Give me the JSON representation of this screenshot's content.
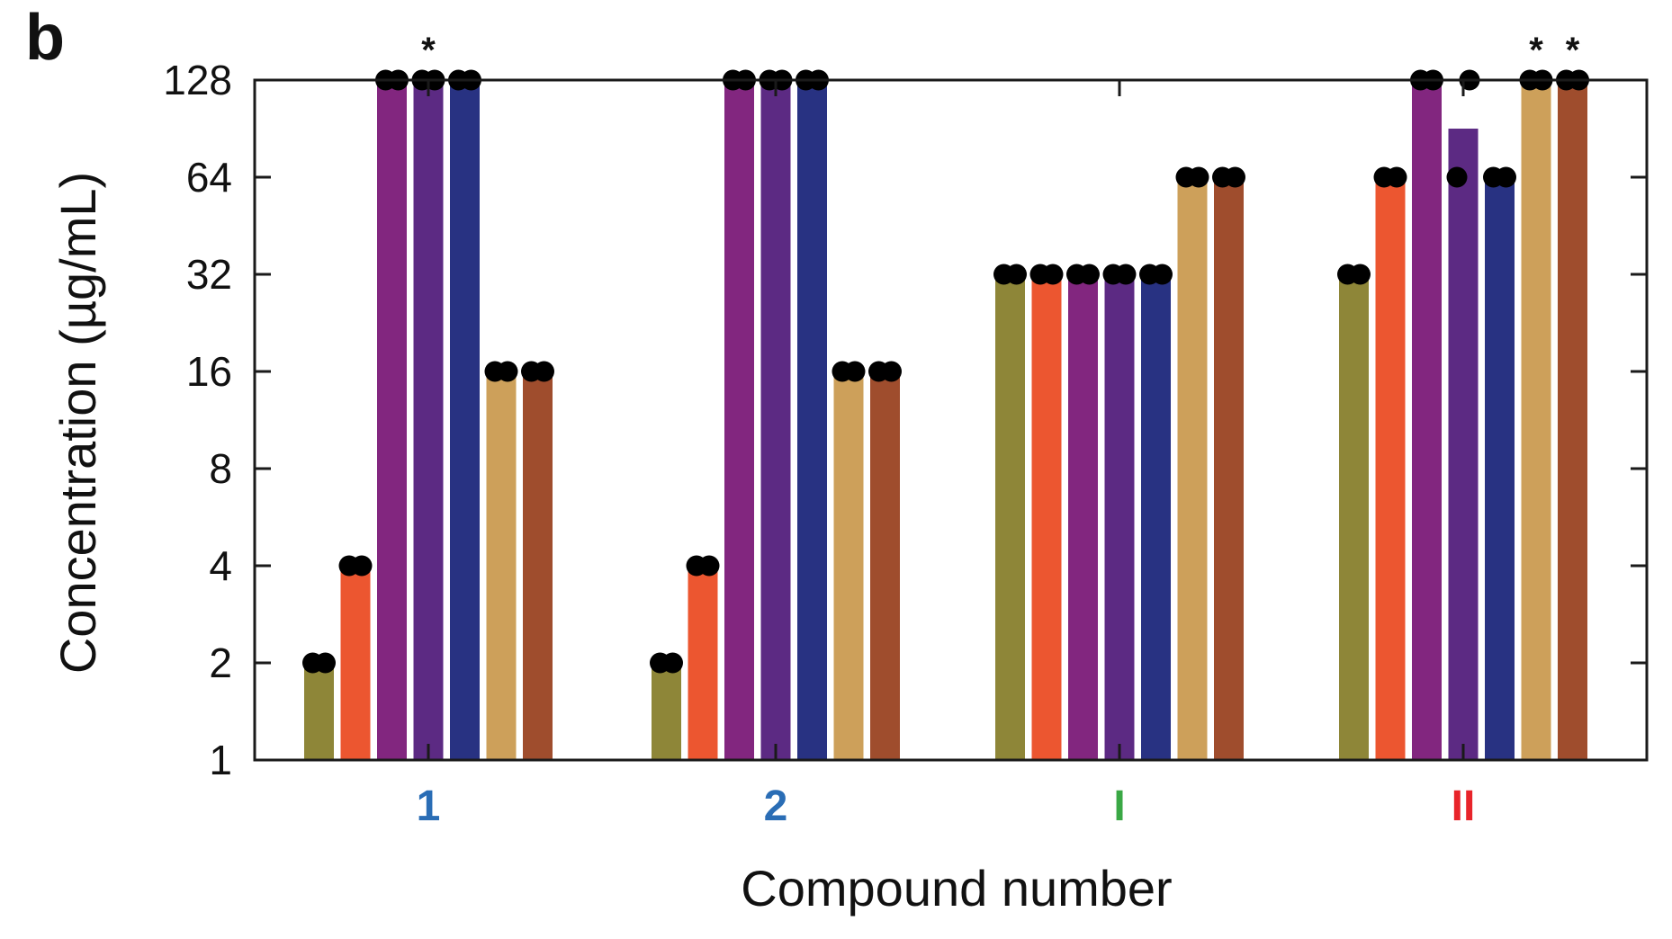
{
  "chart_data": {
    "type": "bar",
    "panel_label": "b",
    "xlabel": "Compound number",
    "ylabel": "Concentration (µg/mL)",
    "y_scale": "log2",
    "ylim": [
      1,
      128
    ],
    "yticks": [
      "1",
      "2",
      "4",
      "8",
      "16",
      "32",
      "64",
      "128"
    ],
    "grid": false,
    "legend": "none",
    "category_colors": [
      "#2a6db5",
      "#2a6db5",
      "#3aa845",
      "#e8242a"
    ],
    "series_colors": [
      "#8e8638",
      "#ec5630",
      "#82267f",
      "#5c2a83",
      "#283282",
      "#cda05a",
      "#9f4d2d"
    ],
    "groups": [
      {
        "label": "1",
        "bars": [
          {
            "value": 2,
            "points": [
              2,
              2
            ]
          },
          {
            "value": 4,
            "points": [
              4,
              4
            ]
          },
          {
            "value": 128,
            "points": [
              128,
              128
            ]
          },
          {
            "value": 128,
            "points": [
              128,
              128
            ],
            "star": "*"
          },
          {
            "value": 128,
            "points": [
              128,
              128
            ]
          },
          {
            "value": 16,
            "points": [
              16,
              16
            ]
          },
          {
            "value": 16,
            "points": [
              16,
              16
            ]
          }
        ]
      },
      {
        "label": "2",
        "bars": [
          {
            "value": 2,
            "points": [
              2,
              2
            ]
          },
          {
            "value": 4,
            "points": [
              4,
              4
            ]
          },
          {
            "value": 128,
            "points": [
              128,
              128
            ]
          },
          {
            "value": 128,
            "points": [
              128,
              128
            ]
          },
          {
            "value": 128,
            "points": [
              128,
              128
            ]
          },
          {
            "value": 16,
            "points": [
              16,
              16
            ]
          },
          {
            "value": 16,
            "points": [
              16,
              16
            ]
          }
        ]
      },
      {
        "label": "I",
        "bars": [
          {
            "value": 32,
            "points": [
              32,
              32
            ]
          },
          {
            "value": 32,
            "points": [
              32,
              32
            ]
          },
          {
            "value": 32,
            "points": [
              32,
              32
            ]
          },
          {
            "value": 32,
            "points": [
              32,
              32
            ]
          },
          {
            "value": 32,
            "points": [
              32,
              32
            ]
          },
          {
            "value": 64,
            "points": [
              64,
              64
            ]
          },
          {
            "value": 64,
            "points": [
              64,
              64
            ]
          }
        ]
      },
      {
        "label": "II",
        "bars": [
          {
            "value": 32,
            "points": [
              32,
              32
            ]
          },
          {
            "value": 64,
            "points": [
              64,
              64
            ]
          },
          {
            "value": 128,
            "points": [
              128,
              128
            ]
          },
          {
            "value": 90.5,
            "points": [
              64,
              128
            ]
          },
          {
            "value": 64,
            "points": [
              64,
              64
            ]
          },
          {
            "value": 128,
            "points": [
              128,
              128
            ],
            "star": "*"
          },
          {
            "value": 128,
            "points": [
              128,
              128
            ],
            "star": "*"
          }
        ]
      }
    ]
  }
}
